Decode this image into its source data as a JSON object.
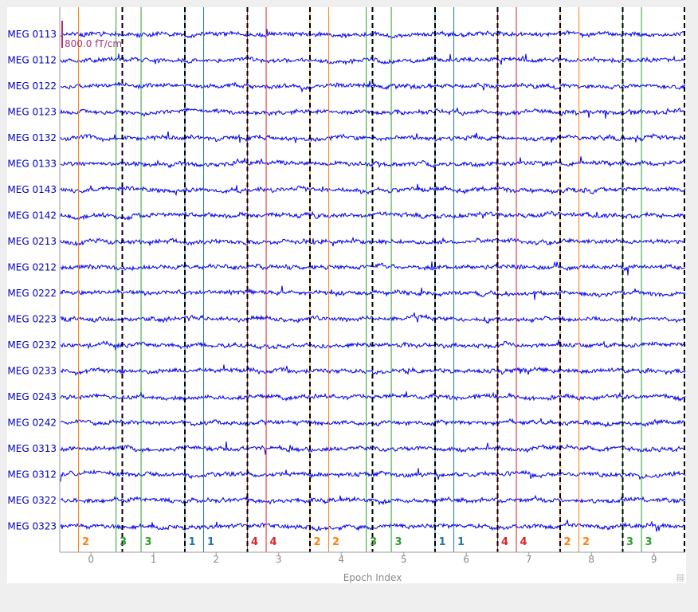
{
  "chart_data": {
    "type": "line",
    "xlabel": "Epoch Index",
    "xticks": [
      0,
      1,
      2,
      3,
      4,
      5,
      6,
      7,
      8,
      9
    ],
    "xlim": [
      -0.5,
      9.5
    ],
    "channels": [
      "MEG 0113",
      "MEG 0112",
      "MEG 0122",
      "MEG 0123",
      "MEG 0132",
      "MEG 0133",
      "MEG 0143",
      "MEG 0142",
      "MEG 0213",
      "MEG 0212",
      "MEG 0222",
      "MEG 0223",
      "MEG 0232",
      "MEG 0233",
      "MEG 0243",
      "MEG 0242",
      "MEG 0313",
      "MEG 0312",
      "MEG 0322",
      "MEG 0323"
    ],
    "scalebar_label": "800.0 fT/cm",
    "epoch_boundaries": [
      0.5,
      1.5,
      2.5,
      3.5,
      4.5,
      5.5,
      6.5,
      7.5,
      8.5,
      9.5
    ],
    "events": [
      {
        "x": -0.2,
        "label": "2"
      },
      {
        "x": 0.4,
        "label": "3"
      },
      {
        "x": 0.8,
        "label": "3"
      },
      {
        "x": 1.5,
        "label": "1"
      },
      {
        "x": 1.8,
        "label": "1"
      },
      {
        "x": 2.5,
        "label": "4"
      },
      {
        "x": 2.8,
        "label": "4"
      },
      {
        "x": 3.5,
        "label": "2"
      },
      {
        "x": 3.8,
        "label": "2"
      },
      {
        "x": 4.4,
        "label": "3"
      },
      {
        "x": 4.8,
        "label": "3"
      },
      {
        "x": 5.5,
        "label": "1"
      },
      {
        "x": 5.8,
        "label": "1"
      },
      {
        "x": 6.5,
        "label": "4"
      },
      {
        "x": 6.8,
        "label": "4"
      },
      {
        "x": 7.5,
        "label": "2"
      },
      {
        "x": 7.8,
        "label": "2"
      },
      {
        "x": 8.5,
        "label": "3"
      },
      {
        "x": 8.8,
        "label": "3"
      }
    ],
    "event_colors": {
      "1": "#1f77b4",
      "2": "#ff7f0e",
      "3": "#2ca02c",
      "4": "#d62728"
    },
    "trace_color": "#0000ee",
    "channel_label_color": "#0000bb",
    "scalebar_color": "#aa3377"
  }
}
